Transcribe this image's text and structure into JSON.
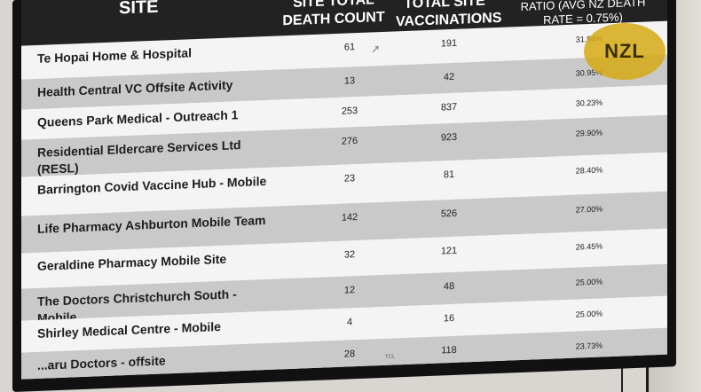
{
  "table": {
    "headers": {
      "site": "SITE",
      "death": "SITE TOTAL DEATH COUNT",
      "vaccinations": "TOTAL SITE VACCINATIONS",
      "ratio": "RATIO (AVG NZ DEATH RATE = 0.75%)"
    },
    "rows": [
      {
        "site": "Te Hopai Home & Hospital",
        "death": "61",
        "vaccinations": "191",
        "ratio": "31.94%"
      },
      {
        "site": "Health Central VC Offsite Activity",
        "death": "13",
        "vaccinations": "42",
        "ratio": "30.95%"
      },
      {
        "site": "Queens Park Medical - Outreach 1",
        "death": "253",
        "vaccinations": "837",
        "ratio": "30.23%"
      },
      {
        "site": "Residential Eldercare Services Ltd (RESL)",
        "death": "276",
        "vaccinations": "923",
        "ratio": "29.90%"
      },
      {
        "site": "Barrington Covid Vaccine Hub - Mobile",
        "death": "23",
        "vaccinations": "81",
        "ratio": "28.40%"
      },
      {
        "site": "Life Pharmacy Ashburton Mobile Team",
        "death": "142",
        "vaccinations": "526",
        "ratio": "27.00%"
      },
      {
        "site": "Geraldine Pharmacy Mobile Site",
        "death": "32",
        "vaccinations": "121",
        "ratio": "26.45%"
      },
      {
        "site": "The Doctors Christchurch South - Mobile",
        "death": "12",
        "vaccinations": "48",
        "ratio": "25.00%"
      },
      {
        "site": "Shirley Medical Centre - Mobile",
        "death": "4",
        "vaccinations": "16",
        "ratio": "25.00%"
      },
      {
        "site": "...aru Doctors - offsite",
        "death": "28",
        "vaccinations": "118",
        "ratio": "23.73%"
      }
    ]
  },
  "logo": {
    "text": "NZL",
    "color": "#d6aa14"
  },
  "icons": {
    "cursor": "mouse-pointer-icon"
  }
}
